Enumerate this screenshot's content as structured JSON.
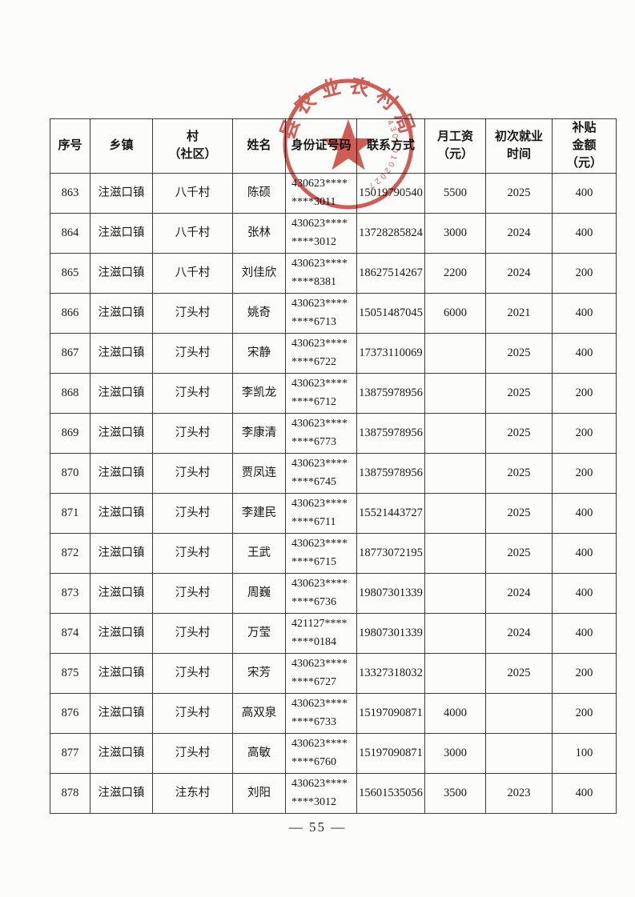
{
  "page": {
    "number_label": "— 55 —"
  },
  "stamp": {
    "arc_text": "县农业农村局",
    "serial_number": "43000102027",
    "color": "#c93a30"
  },
  "table": {
    "columns": [
      {
        "key": "seq",
        "lines": [
          "序号"
        ]
      },
      {
        "key": "township",
        "lines": [
          "乡镇"
        ]
      },
      {
        "key": "village",
        "lines": [
          "村",
          "（社区）"
        ]
      },
      {
        "key": "name",
        "lines": [
          "姓名"
        ]
      },
      {
        "key": "id_lines",
        "lines": [
          "身份证号码"
        ]
      },
      {
        "key": "phone",
        "lines": [
          "联系方式"
        ]
      },
      {
        "key": "salary",
        "lines": [
          "月工资",
          "（元）"
        ]
      },
      {
        "key": "first_year",
        "lines": [
          "初次就业",
          "时间"
        ]
      },
      {
        "key": "subsidy",
        "lines": [
          "补贴",
          "金额",
          "（元）"
        ]
      }
    ],
    "rows": [
      {
        "seq": "863",
        "township": "注滋口镇",
        "village": "八千村",
        "name": "陈硕",
        "id_lines": [
          "430623****",
          "****3011"
        ],
        "phone": "15019790540",
        "salary": "5500",
        "first_year": "2025",
        "subsidy": "400"
      },
      {
        "seq": "864",
        "township": "注滋口镇",
        "village": "八千村",
        "name": "张林",
        "id_lines": [
          "430623****",
          "****3012"
        ],
        "phone": "13728285824",
        "salary": "3000",
        "first_year": "2024",
        "subsidy": "400"
      },
      {
        "seq": "865",
        "township": "注滋口镇",
        "village": "八千村",
        "name": "刘佳欣",
        "id_lines": [
          "430623****",
          "****8381"
        ],
        "phone": "18627514267",
        "salary": "2200",
        "first_year": "2024",
        "subsidy": "200"
      },
      {
        "seq": "866",
        "township": "注滋口镇",
        "village": "汀头村",
        "name": "姚奇",
        "id_lines": [
          "430623****",
          "****6713"
        ],
        "phone": "15051487045",
        "salary": "6000",
        "first_year": "2021",
        "subsidy": "400"
      },
      {
        "seq": "867",
        "township": "注滋口镇",
        "village": "汀头村",
        "name": "宋静",
        "id_lines": [
          "430623****",
          "****6722"
        ],
        "phone": "17373110069",
        "salary": "",
        "first_year": "2025",
        "subsidy": "400"
      },
      {
        "seq": "868",
        "township": "注滋口镇",
        "village": "汀头村",
        "name": "李凯龙",
        "id_lines": [
          "430623****",
          "****6712"
        ],
        "phone": "13875978956",
        "salary": "",
        "first_year": "2025",
        "subsidy": "200"
      },
      {
        "seq": "869",
        "township": "注滋口镇",
        "village": "汀头村",
        "name": "李康清",
        "id_lines": [
          "430623****",
          "****6773"
        ],
        "phone": "13875978956",
        "salary": "",
        "first_year": "2025",
        "subsidy": "200"
      },
      {
        "seq": "870",
        "township": "注滋口镇",
        "village": "汀头村",
        "name": "贾凤连",
        "id_lines": [
          "430623****",
          "****6745"
        ],
        "phone": "13875978956",
        "salary": "",
        "first_year": "2025",
        "subsidy": "200"
      },
      {
        "seq": "871",
        "township": "注滋口镇",
        "village": "汀头村",
        "name": "李建民",
        "id_lines": [
          "430623****",
          "****6711"
        ],
        "phone": "15521443727",
        "salary": "",
        "first_year": "2025",
        "subsidy": "400"
      },
      {
        "seq": "872",
        "township": "注滋口镇",
        "village": "汀头村",
        "name": "王武",
        "id_lines": [
          "430623****",
          "****6715"
        ],
        "phone": "18773072195",
        "salary": "",
        "first_year": "2025",
        "subsidy": "400"
      },
      {
        "seq": "873",
        "township": "注滋口镇",
        "village": "汀头村",
        "name": "周巍",
        "id_lines": [
          "430623****",
          "****6736"
        ],
        "phone": "19807301339",
        "salary": "",
        "first_year": "2024",
        "subsidy": "400"
      },
      {
        "seq": "874",
        "township": "注滋口镇",
        "village": "汀头村",
        "name": "万莹",
        "id_lines": [
          "421127****",
          "****0184"
        ],
        "phone": "19807301339",
        "salary": "",
        "first_year": "2024",
        "subsidy": "400"
      },
      {
        "seq": "875",
        "township": "注滋口镇",
        "village": "汀头村",
        "name": "宋芳",
        "id_lines": [
          "430623****",
          "****6727"
        ],
        "phone": "13327318032",
        "salary": "",
        "first_year": "2025",
        "subsidy": "200"
      },
      {
        "seq": "876",
        "township": "注滋口镇",
        "village": "汀头村",
        "name": "高双泉",
        "id_lines": [
          "430623****",
          "****6733"
        ],
        "phone": "15197090871",
        "salary": "4000",
        "first_year": "",
        "subsidy": "200"
      },
      {
        "seq": "877",
        "township": "注滋口镇",
        "village": "汀头村",
        "name": "高敏",
        "id_lines": [
          "430623****",
          "****6760"
        ],
        "phone": "15197090871",
        "salary": "3000",
        "first_year": "",
        "subsidy": "100"
      },
      {
        "seq": "878",
        "township": "注滋口镇",
        "village": "注东村",
        "name": "刘阳",
        "id_lines": [
          "430623****",
          "****3012"
        ],
        "phone": "15601535056",
        "salary": "3500",
        "first_year": "2023",
        "subsidy": "400"
      }
    ]
  }
}
